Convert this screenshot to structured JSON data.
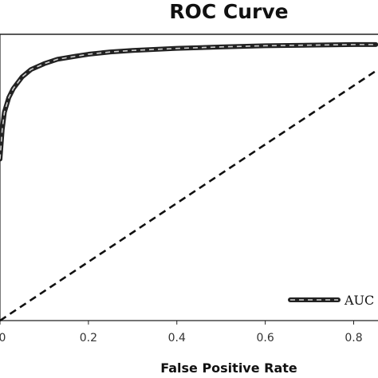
{
  "chart_data": {
    "type": "line",
    "title": "ROC Curve",
    "xlabel": "False Positive Rate",
    "ylabel": "",
    "xlim": [
      0,
      0.85
    ],
    "ylim": [
      0,
      1
    ],
    "xticks": [
      "0",
      "0.2",
      "0.4",
      "0.6",
      "0.8"
    ],
    "grid": false,
    "legend": {
      "placement": "bottom-right",
      "label": "AUC ("
    },
    "series": [
      {
        "name": "AUC (",
        "style": "thick dark with light dashed highlight",
        "x": [
          0.0,
          0.005,
          0.01,
          0.02,
          0.03,
          0.05,
          0.07,
          0.1,
          0.13,
          0.17,
          0.2,
          0.25,
          0.3,
          0.4,
          0.5,
          0.6,
          0.7,
          0.8,
          0.85
        ],
        "y": [
          0.55,
          0.65,
          0.71,
          0.76,
          0.79,
          0.83,
          0.855,
          0.875,
          0.89,
          0.9,
          0.907,
          0.915,
          0.92,
          0.927,
          0.932,
          0.936,
          0.938,
          0.94,
          0.94
        ]
      },
      {
        "x": [
          0.0,
          0.85
        ],
        "y": [
          0.0,
          0.85
        ],
        "style": "dashed"
      }
    ],
    "colors": {
      "curve": "#222222",
      "curve_highlight": "#cfcfcf",
      "diagonal": "#111111",
      "axes": "#222222"
    }
  }
}
